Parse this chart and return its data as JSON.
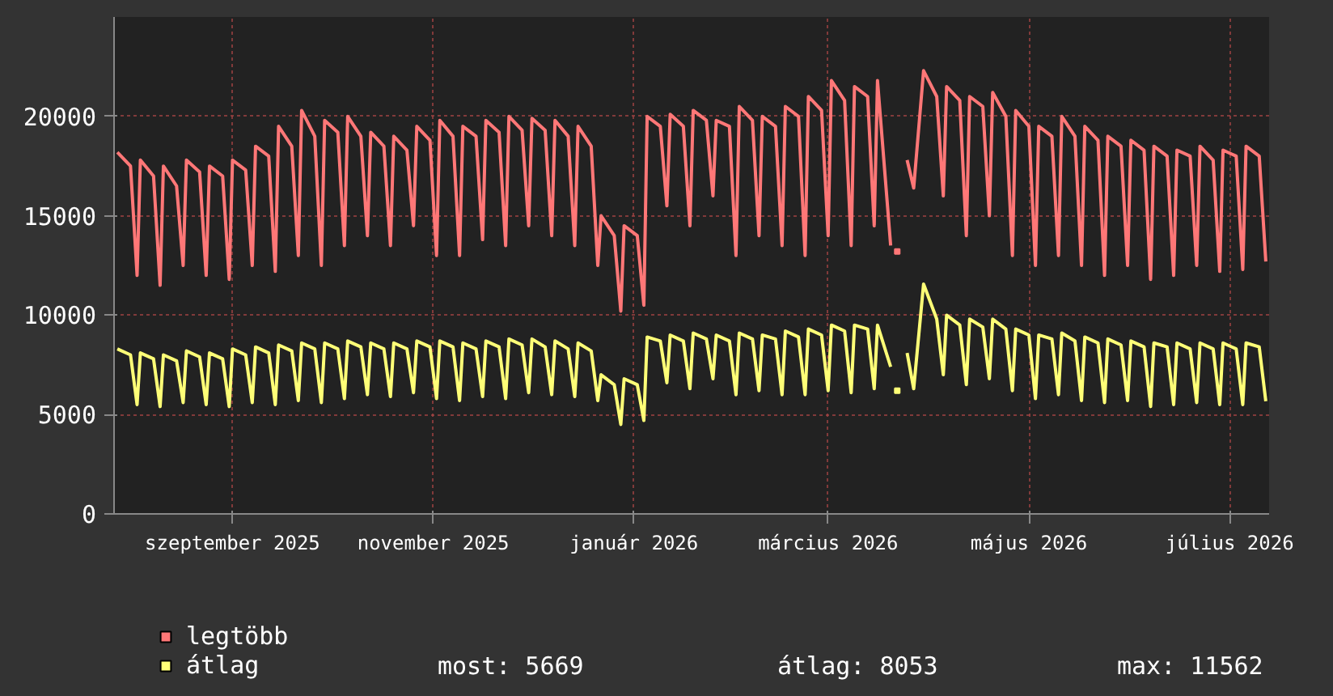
{
  "chart_data": {
    "type": "line",
    "x": [
      "2025-07-28",
      "2025-08-01",
      "2025-08-03",
      "2025-08-04",
      "2025-08-08",
      "2025-08-10",
      "2025-08-11",
      "2025-08-15",
      "2025-08-17",
      "2025-08-18",
      "2025-08-22",
      "2025-08-24",
      "2025-08-25",
      "2025-08-29",
      "2025-08-31",
      "2025-09-01",
      "2025-09-05",
      "2025-09-07",
      "2025-09-08",
      "2025-09-12",
      "2025-09-14",
      "2025-09-15",
      "2025-09-19",
      "2025-09-21",
      "2025-09-22",
      "2025-09-26",
      "2025-09-28",
      "2025-09-29",
      "2025-10-03",
      "2025-10-05",
      "2025-10-06",
      "2025-10-10",
      "2025-10-12",
      "2025-10-13",
      "2025-10-17",
      "2025-10-19",
      "2025-10-20",
      "2025-10-24",
      "2025-10-26",
      "2025-10-27",
      "2025-10-31",
      "2025-11-02",
      "2025-11-03",
      "2025-11-07",
      "2025-11-09",
      "2025-11-10",
      "2025-11-14",
      "2025-11-16",
      "2025-11-17",
      "2025-11-21",
      "2025-11-23",
      "2025-11-24",
      "2025-11-28",
      "2025-11-30",
      "2025-12-01",
      "2025-12-05",
      "2025-12-07",
      "2025-12-08",
      "2025-12-12",
      "2025-12-14",
      "2025-12-15",
      "2025-12-19",
      "2025-12-21",
      "2025-12-22",
      "2025-12-26",
      "2025-12-28",
      "2025-12-29",
      "2026-01-02",
      "2026-01-04",
      "2026-01-05",
      "2026-01-09",
      "2026-01-11",
      "2026-01-12",
      "2026-01-16",
      "2026-01-18",
      "2026-01-19",
      "2026-01-23",
      "2026-01-25",
      "2026-01-26",
      "2026-01-30",
      "2026-02-01",
      "2026-02-02",
      "2026-02-06",
      "2026-02-08",
      "2026-02-09",
      "2026-02-13",
      "2026-02-15",
      "2026-02-16",
      "2026-02-20",
      "2026-02-22",
      "2026-02-23",
      "2026-02-27",
      "2026-03-01",
      "2026-03-02",
      "2026-03-06",
      "2026-03-08",
      "2026-03-09",
      "2026-03-13",
      "2026-03-15",
      "2026-03-16",
      "2026-03-20",
      "2026-03-21",
      "2026-03-22",
      "2026-03-23",
      "2026-03-24",
      "2026-03-25",
      "2026-03-27",
      "2026-03-30",
      "2026-04-03",
      "2026-04-05",
      "2026-04-06",
      "2026-04-10",
      "2026-04-12",
      "2026-04-13",
      "2026-04-17",
      "2026-04-19",
      "2026-04-20",
      "2026-04-24",
      "2026-04-26",
      "2026-04-27",
      "2026-05-01",
      "2026-05-03",
      "2026-05-04",
      "2026-05-08",
      "2026-05-10",
      "2026-05-11",
      "2026-05-15",
      "2026-05-17",
      "2026-05-18",
      "2026-05-22",
      "2026-05-24",
      "2026-05-25",
      "2026-05-29",
      "2026-05-31",
      "2026-06-01",
      "2026-06-05",
      "2026-06-07",
      "2026-06-08",
      "2026-06-12",
      "2026-06-14",
      "2026-06-15",
      "2026-06-19",
      "2026-06-21",
      "2026-06-22",
      "2026-06-26",
      "2026-06-28",
      "2026-06-29",
      "2026-07-03",
      "2026-07-05",
      "2026-07-06",
      "2026-07-10",
      "2026-07-12"
    ],
    "series": [
      {
        "name": "legtöbb",
        "color": "#ff7777",
        "values": [
          18200,
          17500,
          12000,
          17800,
          17000,
          11500,
          17500,
          16500,
          12500,
          17800,
          17200,
          12000,
          17500,
          17000,
          11800,
          17800,
          17300,
          12500,
          18500,
          18000,
          12200,
          19500,
          18500,
          13000,
          20300,
          19000,
          12500,
          19800,
          19200,
          13500,
          20000,
          19000,
          14000,
          19200,
          18500,
          13500,
          19000,
          18300,
          14500,
          19500,
          18800,
          13000,
          19800,
          19000,
          13000,
          19500,
          19000,
          13800,
          19800,
          19200,
          13500,
          20000,
          19300,
          14500,
          19900,
          19300,
          14000,
          19800,
          19000,
          13500,
          19500,
          18500,
          12500,
          15000,
          14000,
          10200,
          14500,
          14000,
          10500,
          20000,
          19500,
          15500,
          20100,
          19500,
          14500,
          20300,
          19800,
          16000,
          19800,
          19500,
          13000,
          20500,
          19800,
          14000,
          20000,
          19500,
          13500,
          20500,
          20000,
          13000,
          21000,
          20300,
          14000,
          21800,
          20800,
          13500,
          21500,
          21000,
          14500,
          21800,
          13500,
          null,
          13200,
          null,
          null,
          17800,
          16400,
          22300,
          21000,
          16000,
          21500,
          20800,
          14000,
          21000,
          20500,
          15000,
          21200,
          20000,
          13000,
          20300,
          19500,
          12500,
          19500,
          19000,
          13000,
          20000,
          19000,
          12500,
          19500,
          18800,
          12000,
          19000,
          18500,
          12500,
          18800,
          18300,
          11800,
          18500,
          18000,
          12000,
          18300,
          18000,
          12500,
          18500,
          17800,
          12200,
          18300,
          18000,
          12300,
          18500,
          18000,
          12700
        ]
      },
      {
        "name": "átlag",
        "color": "#ffff77",
        "values": [
          8300,
          8000,
          5500,
          8100,
          7800,
          5400,
          8000,
          7700,
          5600,
          8200,
          7900,
          5500,
          8100,
          7800,
          5400,
          8300,
          8000,
          5600,
          8400,
          8100,
          5500,
          8500,
          8200,
          5700,
          8600,
          8300,
          5600,
          8600,
          8300,
          5800,
          8700,
          8400,
          6000,
          8600,
          8300,
          5900,
          8600,
          8300,
          6100,
          8700,
          8400,
          5800,
          8700,
          8400,
          5700,
          8600,
          8300,
          5900,
          8700,
          8400,
          5800,
          8800,
          8500,
          6100,
          8800,
          8400,
          6000,
          8700,
          8300,
          5900,
          8600,
          8200,
          5700,
          7000,
          6500,
          4500,
          6800,
          6500,
          4700,
          8900,
          8700,
          6600,
          9000,
          8700,
          6300,
          9100,
          8800,
          6800,
          9000,
          8700,
          6000,
          9100,
          8800,
          6200,
          9000,
          8800,
          6000,
          9200,
          8900,
          6000,
          9300,
          9000,
          6200,
          9500,
          9200,
          6100,
          9500,
          9300,
          6300,
          9500,
          7400,
          null,
          6200,
          null,
          null,
          8100,
          6300,
          11562,
          9800,
          7000,
          10000,
          9500,
          6500,
          9800,
          9400,
          6800,
          9800,
          9300,
          6200,
          9300,
          9000,
          5800,
          9000,
          8800,
          6000,
          9100,
          8700,
          5700,
          8900,
          8600,
          5600,
          8800,
          8500,
          5700,
          8700,
          8400,
          5400,
          8600,
          8400,
          5500,
          8600,
          8300,
          5600,
          8600,
          8300,
          5500,
          8600,
          8300,
          5500,
          8600,
          8400,
          5669
        ]
      }
    ],
    "xlim": [
      "2025-07-27",
      "2026-07-13"
    ],
    "xticks": [
      {
        "value": "2025-09-01",
        "label": "szeptember 2025"
      },
      {
        "value": "2025-11-01",
        "label": "november 2025"
      },
      {
        "value": "2026-01-01",
        "label": "január 2026"
      },
      {
        "value": "2026-03-01",
        "label": "március 2026"
      },
      {
        "value": "2026-05-01",
        "label": "május 2026"
      },
      {
        "value": "2026-07-01",
        "label": "július 2026"
      }
    ],
    "ylim": [
      0,
      25000
    ],
    "yticks": [
      0,
      5000,
      10000,
      15000,
      20000
    ],
    "grid": true,
    "legend": "bottom",
    "line_style": "solid",
    "annotations": [
      "most: 5669",
      "átlag: 8053",
      "max: 11562"
    ]
  }
}
